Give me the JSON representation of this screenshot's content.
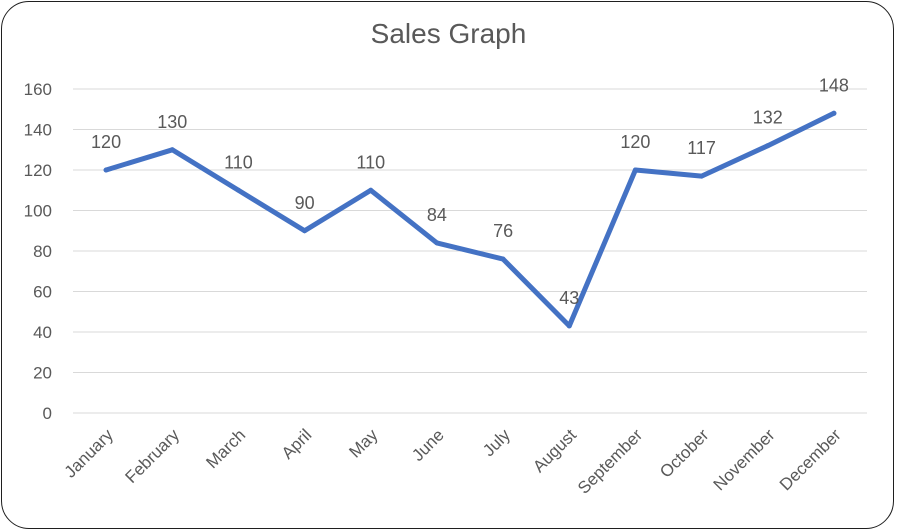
{
  "chart_data": {
    "type": "line",
    "title": "Sales Graph",
    "xlabel": "",
    "ylabel": "",
    "categories": [
      "January",
      "February",
      "March",
      "April",
      "May",
      "June",
      "July",
      "August",
      "September",
      "October",
      "November",
      "December"
    ],
    "series": [
      {
        "values": [
          120,
          130,
          110,
          90,
          110,
          84,
          76,
          43,
          120,
          117,
          132,
          148
        ],
        "color": "#4472c4"
      }
    ],
    "data_labels": [
      "120",
      "130",
      "110",
      "90",
      "110",
      "84",
      "76",
      "43",
      "120",
      "117",
      "132",
      "148"
    ],
    "ylim": [
      0,
      160
    ],
    "yticks": [
      "0",
      "20",
      "40",
      "60",
      "80",
      "100",
      "120",
      "140",
      "160"
    ],
    "grid": true,
    "legend": "none",
    "colors": {
      "line": "#4472c4",
      "grid": "#d9d9d9",
      "text": "#595959",
      "border": "#1f1f1f"
    }
  }
}
